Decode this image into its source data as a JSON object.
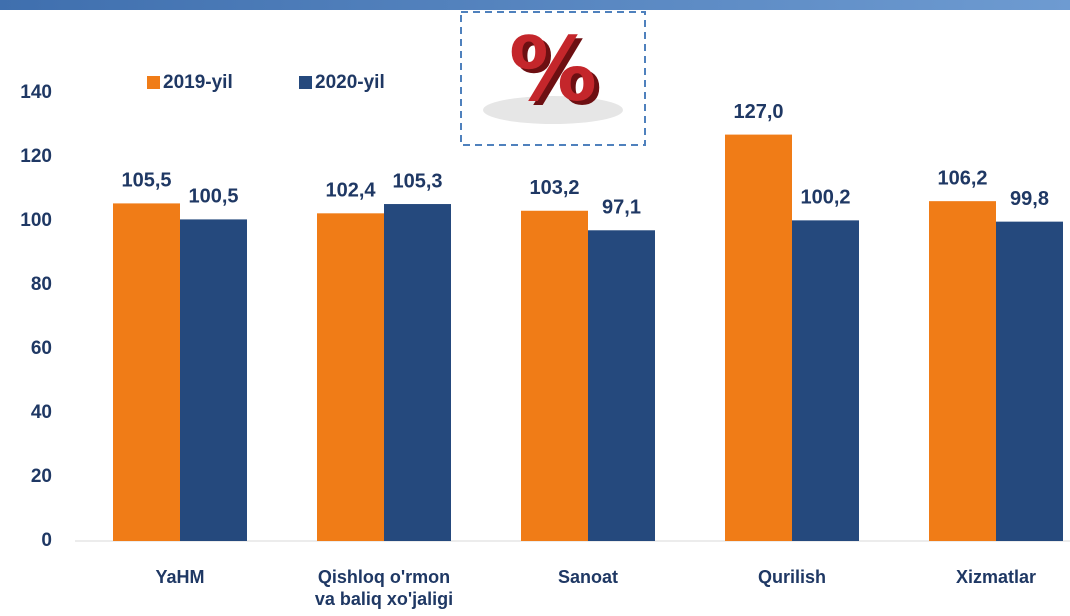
{
  "chart_data": {
    "type": "bar",
    "categories": [
      "YaHM",
      "Qishloq o'rmon\nva baliq xo'jaligi",
      "Sanoat",
      "Qurilish",
      "Xizmatlar"
    ],
    "series": [
      {
        "name": "2019-yil",
        "color": "#f07c17",
        "values": [
          105.5,
          102.4,
          103.2,
          127.0,
          106.2
        ],
        "value_labels": [
          "105,5",
          "102,4",
          "103,2",
          "127,0",
          "106,2"
        ]
      },
      {
        "name": "2020-yil",
        "color": "#25497d",
        "values": [
          100.5,
          105.3,
          97.1,
          100.2,
          99.8
        ],
        "value_labels": [
          "100,5",
          "105,3",
          "97,1",
          "100,2",
          "99,8"
        ]
      }
    ],
    "ylim": [
      0,
      140
    ],
    "yticks": [
      0,
      20,
      40,
      60,
      80,
      100,
      120,
      140
    ],
    "grid": false,
    "legend": "top-left"
  }
}
